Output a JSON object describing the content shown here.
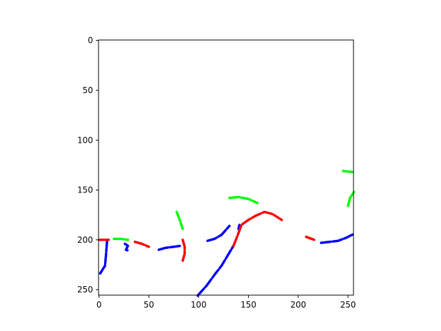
{
  "chart_data": {
    "type": "line",
    "title": "",
    "xlabel": "",
    "ylabel": "",
    "xlim": [
      -0.5,
      255.5
    ],
    "ylim": [
      255.5,
      -0.5
    ],
    "y_inverted": true,
    "grid": false,
    "xticks": [
      0,
      50,
      100,
      150,
      200,
      250
    ],
    "yticks": [
      0,
      50,
      100,
      150,
      200,
      250
    ],
    "background": "#ffffff",
    "series": [
      {
        "color": "#0000ff",
        "points": [
          [
            8,
            202
          ],
          [
            7,
            215
          ],
          [
            6,
            226
          ],
          [
            1,
            234
          ]
        ]
      },
      {
        "color": "#0000ff",
        "points": [
          [
            60,
            210
          ],
          [
            67,
            208
          ],
          [
            75,
            207
          ],
          [
            82,
            206
          ]
        ]
      },
      {
        "color": "#0000ff",
        "points": [
          [
            109,
            201
          ],
          [
            116,
            199
          ],
          [
            123,
            195
          ],
          [
            131,
            186
          ]
        ]
      },
      {
        "color": "#0000ff",
        "points": [
          [
            99,
            256
          ],
          [
            108,
            246
          ],
          [
            116,
            235
          ],
          [
            123,
            226
          ],
          [
            129,
            216
          ],
          [
            135,
            206
          ]
        ]
      },
      {
        "color": "#0000ff",
        "points": [
          [
            140,
            189
          ],
          [
            141,
            185
          ]
        ]
      },
      {
        "color": "#0000ff",
        "points": [
          [
            223,
            203
          ],
          [
            232,
            202
          ],
          [
            240,
            201
          ],
          [
            248,
            198
          ],
          [
            256,
            194
          ]
        ]
      },
      {
        "color": "#0000ff",
        "points": [
          [
            26,
            204
          ],
          [
            29,
            206
          ],
          [
            27,
            210
          ],
          [
            30,
            211
          ]
        ]
      },
      {
        "color": "#ff0000",
        "points": [
          [
            0,
            200
          ],
          [
            10,
            200
          ]
        ]
      },
      {
        "color": "#ff0000",
        "points": [
          [
            36,
            202
          ],
          [
            43,
            204
          ],
          [
            50,
            207
          ]
        ]
      },
      {
        "color": "#ff0000",
        "points": [
          [
            135,
            206
          ],
          [
            139,
            196
          ],
          [
            143,
            185
          ],
          [
            150,
            180
          ],
          [
            157,
            176
          ],
          [
            166,
            172
          ],
          [
            174,
            174
          ],
          [
            185,
            181
          ]
        ]
      },
      {
        "color": "#ff0000",
        "points": [
          [
            84,
            200
          ],
          [
            86,
            207
          ],
          [
            86,
            214
          ],
          [
            84,
            221
          ]
        ]
      },
      {
        "color": "#ff0000",
        "points": [
          [
            208,
            197
          ],
          [
            216,
            200
          ]
        ]
      },
      {
        "color": "#00ff00",
        "points": [
          [
            78,
            172
          ],
          [
            81,
            180
          ],
          [
            84,
            189
          ]
        ]
      },
      {
        "color": "#00ff00",
        "points": [
          [
            131,
            158
          ],
          [
            140,
            157
          ],
          [
            150,
            159
          ],
          [
            159,
            163
          ]
        ]
      },
      {
        "color": "#00ff00",
        "points": [
          [
            245,
            131
          ],
          [
            256,
            132
          ]
        ]
      },
      {
        "color": "#00ff00",
        "points": [
          [
            250,
            166
          ],
          [
            252,
            158
          ],
          [
            256,
            152
          ]
        ]
      },
      {
        "color": "#00ff00",
        "points": [
          [
            15,
            199
          ],
          [
            22,
            199
          ],
          [
            29,
            200
          ]
        ]
      }
    ]
  }
}
